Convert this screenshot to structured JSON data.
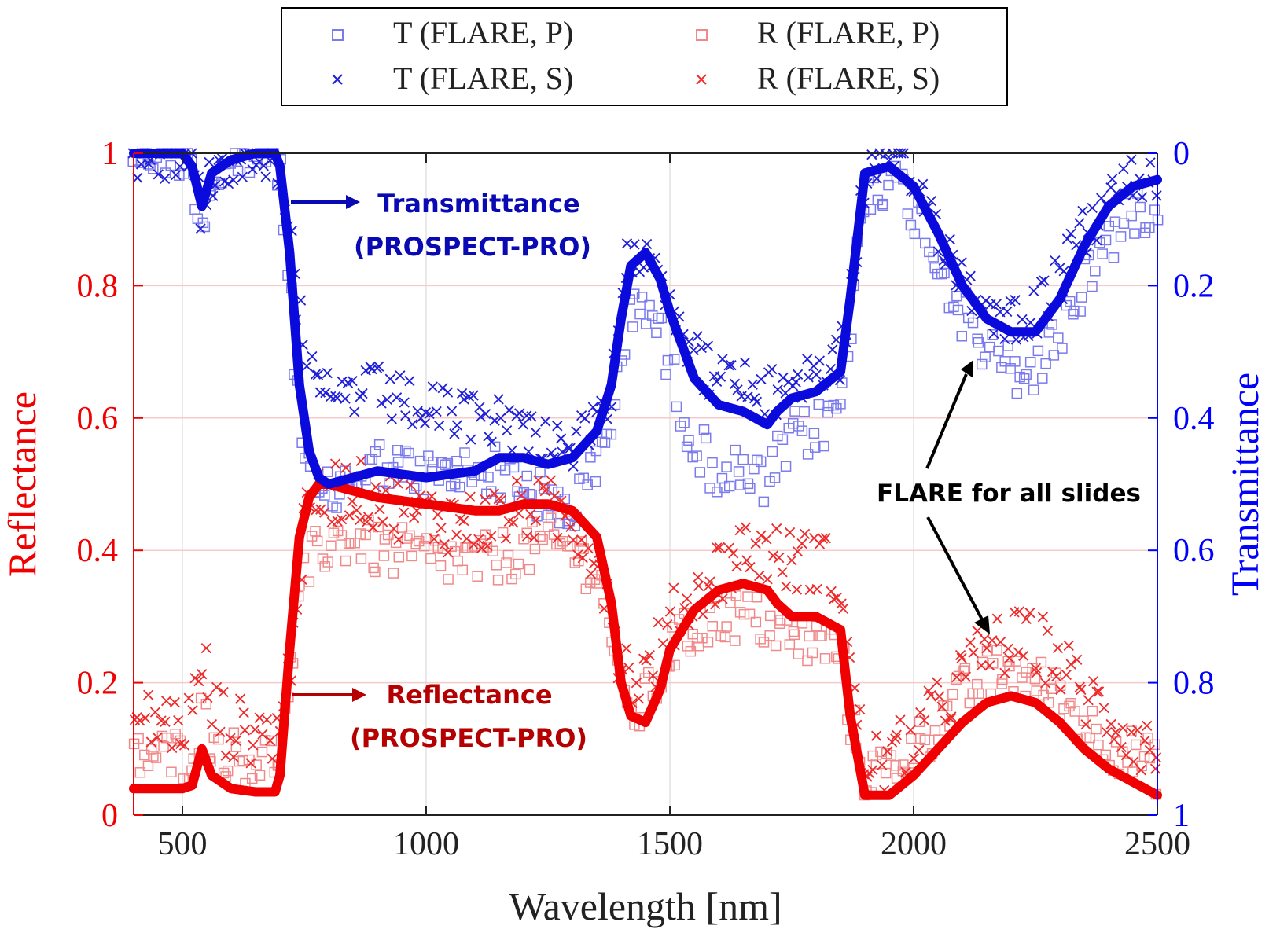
{
  "chart_data": {
    "type": "scatter",
    "title": "",
    "xlabel": "Wavelength [nm]",
    "ylabel_left": "Reflectance",
    "ylabel_right": "Transmittance",
    "xlim": [
      400,
      2500
    ],
    "ylim_left": [
      0,
      1
    ],
    "ylim_right": [
      0,
      1
    ],
    "right_axis_reversed": true,
    "xticks": [
      500,
      1000,
      1500,
      2000,
      2500
    ],
    "yticks_left": [
      "0",
      "0.2",
      "0.4",
      "0.6",
      "0.8",
      "1"
    ],
    "yticks_right": [
      "0",
      "0.2",
      "0.4",
      "0.6",
      "0.8",
      "1"
    ],
    "grid": true,
    "legend_position": "top-center",
    "legend": [
      {
        "label": "T (FLARE, P)",
        "marker": "square",
        "color": "#7b7bee"
      },
      {
        "label": "R (FLARE, P)",
        "marker": "square",
        "color": "#f08a8a"
      },
      {
        "label": "T (FLARE, S)",
        "marker": "cross",
        "color": "#1f1fd8"
      },
      {
        "label": "R (FLARE, S)",
        "marker": "cross",
        "color": "#ee2b2b"
      }
    ],
    "series": [
      {
        "name": "Transmittance (PROSPECT-PRO)",
        "axis": "right",
        "style": "line",
        "color": "#0a0adc",
        "x": [
          400,
          500,
          520,
          540,
          560,
          600,
          650,
          690,
          700,
          720,
          740,
          760,
          780,
          800,
          850,
          900,
          1000,
          1100,
          1150,
          1200,
          1250,
          1300,
          1350,
          1380,
          1400,
          1420,
          1450,
          1480,
          1500,
          1550,
          1600,
          1650,
          1700,
          1720,
          1750,
          1800,
          1850,
          1870,
          1900,
          1950,
          2000,
          2050,
          2100,
          2150,
          2200,
          2250,
          2300,
          2350,
          2400,
          2450,
          2500
        ],
        "y": [
          0.0,
          0.0,
          0.02,
          0.08,
          0.03,
          0.01,
          0.0,
          0.0,
          0.02,
          0.15,
          0.35,
          0.45,
          0.49,
          0.5,
          0.49,
          0.48,
          0.49,
          0.48,
          0.46,
          0.46,
          0.47,
          0.46,
          0.42,
          0.35,
          0.25,
          0.17,
          0.15,
          0.19,
          0.24,
          0.34,
          0.38,
          0.39,
          0.41,
          0.39,
          0.37,
          0.36,
          0.33,
          0.22,
          0.03,
          0.02,
          0.05,
          0.12,
          0.2,
          0.25,
          0.27,
          0.27,
          0.22,
          0.14,
          0.08,
          0.05,
          0.04
        ]
      },
      {
        "name": "Reflectance (PROSPECT-PRO)",
        "axis": "left",
        "style": "line",
        "color": "#f00000",
        "x": [
          400,
          500,
          520,
          540,
          560,
          600,
          650,
          690,
          700,
          720,
          740,
          760,
          780,
          800,
          850,
          900,
          1000,
          1100,
          1150,
          1200,
          1250,
          1300,
          1350,
          1380,
          1400,
          1420,
          1450,
          1480,
          1500,
          1550,
          1600,
          1650,
          1700,
          1720,
          1750,
          1800,
          1850,
          1870,
          1900,
          1950,
          2000,
          2050,
          2100,
          2150,
          2200,
          2250,
          2300,
          2350,
          2400,
          2450,
          2500
        ],
        "y": [
          0.04,
          0.04,
          0.045,
          0.1,
          0.06,
          0.04,
          0.035,
          0.035,
          0.06,
          0.25,
          0.42,
          0.48,
          0.5,
          0.5,
          0.49,
          0.48,
          0.47,
          0.46,
          0.46,
          0.47,
          0.47,
          0.46,
          0.42,
          0.32,
          0.2,
          0.15,
          0.14,
          0.19,
          0.25,
          0.31,
          0.34,
          0.35,
          0.34,
          0.32,
          0.3,
          0.3,
          0.28,
          0.15,
          0.03,
          0.03,
          0.06,
          0.1,
          0.14,
          0.17,
          0.18,
          0.17,
          0.14,
          0.1,
          0.07,
          0.05,
          0.03
        ]
      },
      {
        "name": "T (FLARE, P)",
        "axis": "right",
        "style": "markers",
        "marker": "square",
        "color": "#7b7bee",
        "offset": [
          0.0,
          0.0,
          0.0,
          0.03,
          0.01,
          0.01,
          0.0,
          0.0,
          0.02,
          0.05,
          0.06,
          0.05,
          0.04,
          0.02,
          0.0,
          -0.01,
          0.0,
          0.0,
          0.02,
          0.04,
          0.06,
          0.08,
          0.06,
          0.05,
          0.06,
          0.07,
          0.07,
          0.08,
          0.09,
          0.1,
          0.1,
          0.1,
          0.09,
          0.08,
          0.06,
          0.06,
          0.05,
          0.04,
          0.02,
          0.02,
          0.03,
          0.04,
          0.04,
          0.05,
          0.06,
          0.06,
          0.05,
          0.05,
          0.05,
          0.04,
          0.03
        ],
        "spread": 0.04
      },
      {
        "name": "T (FLARE, S)",
        "axis": "right",
        "style": "markers",
        "marker": "cross",
        "color": "#1f1fd8",
        "offset": [
          0.0,
          0.0,
          0.0,
          0.0,
          0.0,
          0.0,
          0.0,
          0.0,
          0.0,
          -0.05,
          -0.1,
          -0.12,
          -0.12,
          -0.13,
          -0.13,
          -0.12,
          -0.1,
          -0.08,
          -0.06,
          -0.04,
          -0.04,
          -0.02,
          0.0,
          0.02,
          0.0,
          -0.02,
          -0.02,
          -0.02,
          -0.03,
          -0.03,
          -0.04,
          -0.04,
          -0.04,
          -0.03,
          -0.03,
          -0.03,
          -0.02,
          0.0,
          0.0,
          0.0,
          -0.01,
          -0.01,
          -0.01,
          -0.02,
          -0.02,
          -0.03,
          -0.03,
          -0.02,
          -0.01,
          -0.01,
          -0.01
        ],
        "spread": 0.04
      },
      {
        "name": "R (FLARE, P)",
        "axis": "left",
        "style": "markers",
        "marker": "square",
        "color": "#f08a8a",
        "offset": [
          0.05,
          0.05,
          0.05,
          0.05,
          0.05,
          0.05,
          0.05,
          0.05,
          0.04,
          -0.05,
          -0.1,
          -0.1,
          -0.1,
          -0.09,
          -0.07,
          -0.08,
          -0.08,
          -0.08,
          -0.07,
          -0.07,
          -0.06,
          -0.06,
          -0.05,
          -0.04,
          -0.02,
          0.0,
          0.03,
          0.02,
          0.0,
          -0.03,
          -0.04,
          -0.05,
          -0.05,
          -0.04,
          -0.04,
          -0.04,
          -0.03,
          -0.01,
          0.03,
          0.04,
          0.04,
          0.04,
          0.04,
          0.04,
          0.04,
          0.03,
          0.04,
          0.04,
          0.04,
          0.04,
          0.04
        ],
        "spread": 0.04
      },
      {
        "name": "R (FLARE, S)",
        "axis": "left",
        "style": "markers",
        "marker": "cross",
        "color": "#ee2b2b",
        "offset": [
          0.1,
          0.1,
          0.1,
          0.14,
          0.1,
          0.09,
          0.09,
          0.09,
          0.06,
          -0.02,
          -0.04,
          -0.03,
          -0.02,
          -0.01,
          0.0,
          0.0,
          -0.02,
          -0.02,
          -0.01,
          -0.01,
          -0.01,
          -0.02,
          -0.02,
          0.0,
          0.03,
          0.06,
          0.07,
          0.06,
          0.04,
          0.02,
          0.03,
          0.05,
          0.06,
          0.07,
          0.08,
          0.09,
          0.07,
          0.06,
          0.05,
          0.05,
          0.05,
          0.06,
          0.07,
          0.08,
          0.08,
          0.09,
          0.09,
          0.08,
          0.08,
          0.07,
          0.06
        ],
        "spread": 0.05
      }
    ],
    "annotations": [
      {
        "text": "Transmittance",
        "color": "#0a0ab4",
        "anchor_x": 745,
        "anchor_value": 0.93
      },
      {
        "text": "(PROSPECT-PRO)",
        "color": "#0a0ab4"
      },
      {
        "text": "Reflectance",
        "color": "#b40000",
        "anchor_x": 730,
        "anchor_value": 0.18
      },
      {
        "text": "(PROSPECT-PRO)",
        "color": "#b40000"
      },
      {
        "text": "FLARE for all slides",
        "color": "#000000"
      }
    ]
  }
}
